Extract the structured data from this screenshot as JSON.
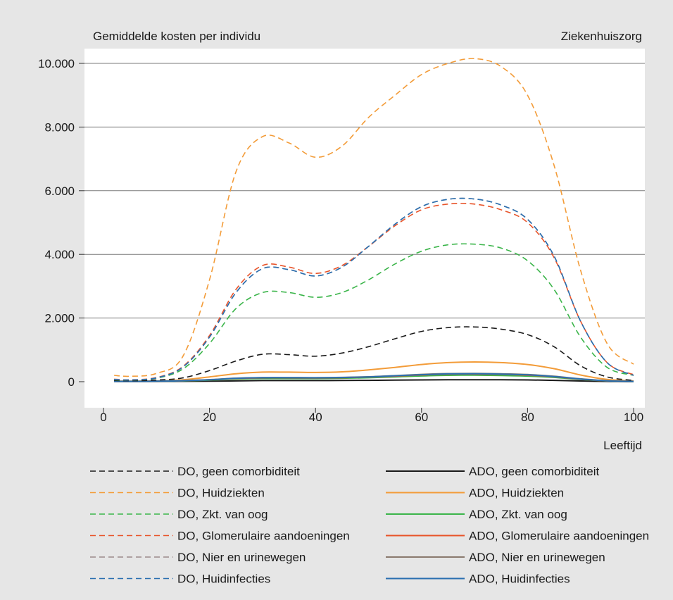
{
  "chart_data": {
    "type": "line",
    "ylabel": "Gemiddelde kosten per individu",
    "panel_label": "Ziekenhuiszorg",
    "xlabel": "Leeftijd",
    "xlim": [
      0,
      100
    ],
    "ylim": [
      0,
      10000
    ],
    "xticks": [
      0,
      20,
      40,
      60,
      80,
      100
    ],
    "yticks": [
      0,
      2000,
      4000,
      6000,
      8000,
      10000
    ],
    "ytick_labels": [
      "0",
      "2.000",
      "4.000",
      "6.000",
      "8.000",
      "10.000"
    ],
    "grid": "horizontal",
    "legend_placement": "bottom",
    "x": [
      2,
      5,
      10,
      15,
      20,
      25,
      30,
      35,
      40,
      45,
      50,
      55,
      60,
      65,
      70,
      75,
      80,
      85,
      90,
      95,
      100
    ],
    "series": [
      {
        "name": "DO, geen comorbiditeit",
        "style": "dashed",
        "color": "#1a1a1a",
        "values": [
          40,
          30,
          50,
          120,
          350,
          650,
          860,
          850,
          800,
          900,
          1100,
          1350,
          1580,
          1700,
          1720,
          1650,
          1480,
          1100,
          500,
          150,
          40
        ]
      },
      {
        "name": "DO, Huidziekten",
        "style": "dashed",
        "color": "#f39c39",
        "values": [
          200,
          170,
          260,
          800,
          3200,
          6600,
          7700,
          7500,
          7050,
          7400,
          8300,
          9000,
          9650,
          10000,
          10150,
          9900,
          9000,
          6800,
          3500,
          1200,
          550
        ]
      },
      {
        "name": "DO, Zkt. van oog",
        "style": "dashed",
        "color": "#3bb54a",
        "values": [
          60,
          50,
          110,
          400,
          1200,
          2300,
          2800,
          2800,
          2650,
          2800,
          3200,
          3700,
          4100,
          4300,
          4320,
          4200,
          3800,
          2900,
          1400,
          450,
          200
        ]
      },
      {
        "name": "DO, Glomerulaire aandoeningen",
        "style": "dashed",
        "color": "#e8542a",
        "values": [
          80,
          60,
          130,
          480,
          1450,
          2900,
          3650,
          3600,
          3400,
          3650,
          4250,
          4900,
          5400,
          5580,
          5580,
          5400,
          5000,
          3900,
          1900,
          600,
          220
        ]
      },
      {
        "name": "DO, Nier en urinewegen",
        "style": "dashed",
        "color": "#9b8a8c",
        "values": [
          70,
          55,
          120,
          460,
          1400,
          2800,
          3550,
          3520,
          3320,
          3600,
          4250,
          4950,
          5500,
          5730,
          5740,
          5550,
          5100,
          3950,
          1900,
          600,
          200
        ]
      },
      {
        "name": "DO, Huidinfecties",
        "style": "dashed",
        "color": "#2a6fb0",
        "values": [
          70,
          55,
          120,
          460,
          1400,
          2800,
          3550,
          3520,
          3320,
          3600,
          4250,
          4950,
          5500,
          5730,
          5740,
          5550,
          5100,
          3950,
          1900,
          600,
          200
        ]
      },
      {
        "name": "ADO, geen comorbiditeit",
        "style": "solid",
        "color": "#1a1a1a",
        "values": [
          5,
          5,
          5,
          10,
          15,
          25,
          35,
          35,
          35,
          38,
          42,
          48,
          55,
          60,
          62,
          60,
          55,
          42,
          22,
          8,
          3
        ]
      },
      {
        "name": "ADO, Huidziekten",
        "style": "solid",
        "color": "#f39c39",
        "values": [
          20,
          18,
          25,
          60,
          150,
          250,
          300,
          300,
          290,
          310,
          370,
          450,
          540,
          600,
          620,
          600,
          540,
          410,
          210,
          70,
          25
        ]
      },
      {
        "name": "ADO, Zkt. van oog",
        "style": "solid",
        "color": "#3bb54a",
        "values": [
          10,
          10,
          12,
          25,
          50,
          85,
          100,
          100,
          100,
          108,
          125,
          150,
          180,
          200,
          205,
          195,
          175,
          135,
          70,
          25,
          8
        ]
      },
      {
        "name": "ADO, Glomerulaire aandoeningen",
        "style": "solid",
        "color": "#e8542a",
        "values": [
          12,
          12,
          15,
          30,
          60,
          100,
          120,
          120,
          118,
          125,
          145,
          175,
          210,
          235,
          240,
          230,
          205,
          155,
          80,
          28,
          10
        ]
      },
      {
        "name": "ADO, Nier en urinewegen",
        "style": "solid",
        "color": "#8a7a6e",
        "values": [
          13,
          13,
          16,
          32,
          65,
          110,
          130,
          130,
          128,
          135,
          155,
          190,
          230,
          255,
          260,
          250,
          225,
          170,
          90,
          30,
          10
        ]
      },
      {
        "name": "ADO, Huidinfecties",
        "style": "solid",
        "color": "#2a6fb0",
        "values": [
          12,
          12,
          15,
          30,
          60,
          105,
          125,
          125,
          122,
          130,
          150,
          185,
          220,
          245,
          250,
          240,
          215,
          160,
          85,
          28,
          10
        ]
      }
    ]
  }
}
